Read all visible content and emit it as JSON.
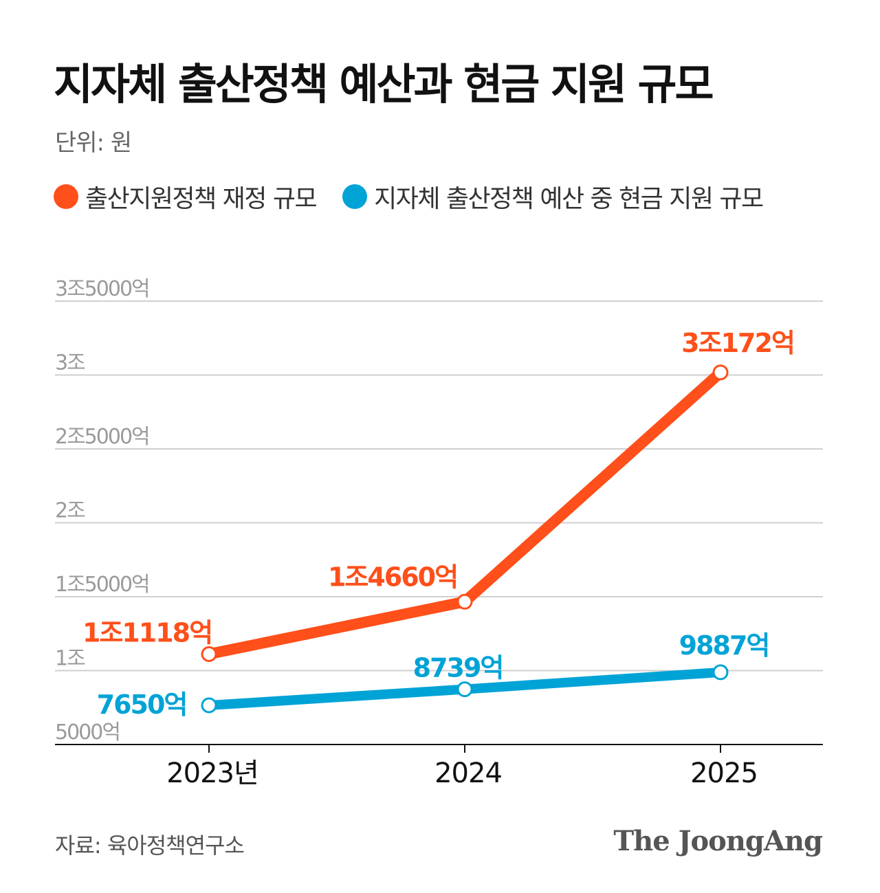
{
  "title": "지자체 출산정책 예산과 현금 지원 규모",
  "unit": "단위: 원",
  "source": "자료: 육아정책연구소",
  "logo": "The JoongAng",
  "chart_data": {
    "type": "line",
    "title": "지자체 출산정책 예산과 현금 지원 규모",
    "categories": [
      "2023년",
      "2024",
      "2025"
    ],
    "y_unit": "억 원",
    "ylim": [
      5000,
      35000
    ],
    "y_ticks": [
      {
        "value": 5000,
        "label": "5000억"
      },
      {
        "value": 10000,
        "label": "1조"
      },
      {
        "value": 15000,
        "label": "1조5000억"
      },
      {
        "value": 20000,
        "label": "2조"
      },
      {
        "value": 25000,
        "label": "2조5000억"
      },
      {
        "value": 30000,
        "label": "3조"
      },
      {
        "value": 35000,
        "label": "3조5000억"
      }
    ],
    "grid": true,
    "legend_position": "top-left",
    "series": [
      {
        "name": "출산지원정책 재정 규모",
        "color": "#ff4f1a",
        "values": [
          11118,
          14660,
          30172
        ],
        "labels": [
          "1조1118억",
          "1조4660억",
          "3조172억"
        ]
      },
      {
        "name": "지자체 출산정책 예산 중 현금 지원 규모",
        "color": "#00a3d6",
        "values": [
          7650,
          8739,
          9887
        ],
        "labels": [
          "7650억",
          "8739억",
          "9887억"
        ]
      }
    ]
  }
}
